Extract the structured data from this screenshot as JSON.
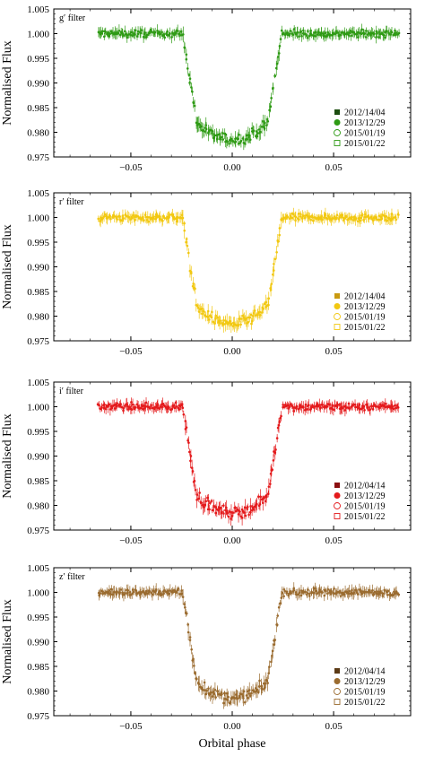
{
  "chart_data": [
    {
      "type": "scatter",
      "filter_label": "g′ filter",
      "ylabel": "Normalised Flux",
      "xlim": [
        -0.088,
        0.088
      ],
      "ylim": [
        0.975,
        1.005
      ],
      "x_ticks": [
        "−0.05",
        "0.00",
        "0.05"
      ],
      "y_ticks": [
        "1.005",
        "1.000",
        "0.995",
        "0.990",
        "0.985",
        "0.980",
        "0.975"
      ],
      "color": "#2e9a14",
      "legend_position": "bottom-right",
      "legend": [
        "2012/14/04",
        "2013/12/29",
        "2015/01/19",
        "2015/01/22"
      ]
    },
    {
      "type": "scatter",
      "filter_label": "r′ filter",
      "ylabel": "Normalised Flux",
      "xlim": [
        -0.088,
        0.088
      ],
      "ylim": [
        0.975,
        1.005
      ],
      "x_ticks": [
        "−0.05",
        "0.00",
        "0.05"
      ],
      "y_ticks": [
        "1.005",
        "1.000",
        "0.995",
        "0.990",
        "0.985",
        "0.980",
        "0.975"
      ],
      "color": "#f2c811",
      "legend_position": "bottom-right",
      "legend": [
        "2012/14/04",
        "2013/12/29",
        "2015/01/19",
        "2015/01/22"
      ]
    },
    {
      "type": "scatter",
      "filter_label": "i′ filter",
      "ylabel": "Normalised Flux",
      "xlim": [
        -0.088,
        0.088
      ],
      "ylim": [
        0.975,
        1.005
      ],
      "x_ticks": [
        "−0.05",
        "0.00",
        "0.05"
      ],
      "y_ticks": [
        "1.005",
        "1.000",
        "0.995",
        "0.990",
        "0.985",
        "0.980",
        "0.975"
      ],
      "color": "#e41a1c",
      "legend_position": "bottom-right",
      "legend": [
        "2012/04/14",
        "2013/12/29",
        "2015/01/19",
        "2015/01/22"
      ]
    },
    {
      "type": "scatter",
      "filter_label": "z′ filter",
      "ylabel": "Normalised Flux",
      "xlabel": "Orbital phase",
      "xlim": [
        -0.088,
        0.088
      ],
      "ylim": [
        0.975,
        1.005
      ],
      "x_ticks": [
        "−0.05",
        "0.00",
        "0.05"
      ],
      "y_ticks": [
        "1.005",
        "1.000",
        "0.995",
        "0.990",
        "0.985",
        "0.980",
        "0.975"
      ],
      "color": "#9a6b2f",
      "legend_position": "bottom-right",
      "legend": [
        "2012/04/14",
        "2013/12/29",
        "2015/01/19",
        "2015/01/22"
      ]
    }
  ]
}
